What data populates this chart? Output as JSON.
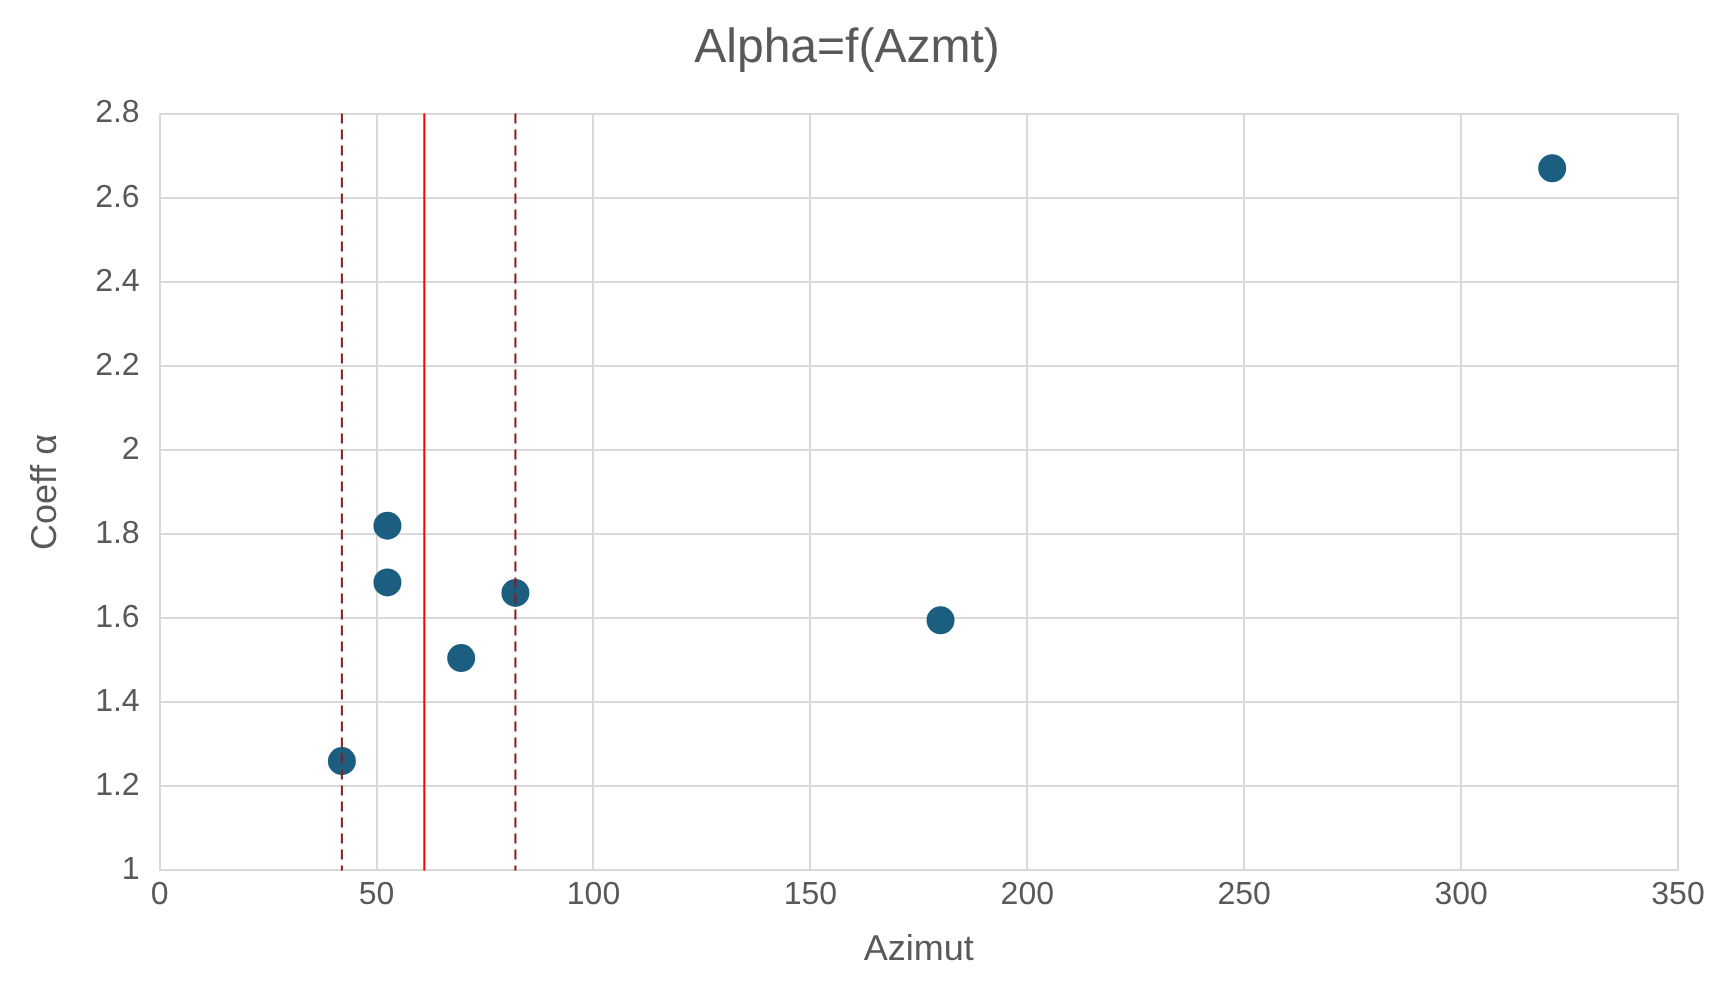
{
  "chart_data": {
    "type": "scatter",
    "title": "Alpha=f(Azmt)",
    "xlabel": "Azimut",
    "ylabel": "Coeff α",
    "x": [
      42,
      52.5,
      52.5,
      69.5,
      82,
      180,
      321
    ],
    "series": [
      {
        "color": "#1b5e80",
        "values": [
          1.26,
          1.82,
          1.685,
          1.505,
          1.66,
          1.595,
          2.67
        ]
      }
    ],
    "xlim": [
      0,
      350
    ],
    "xticks": [
      0,
      50,
      100,
      150,
      200,
      250,
      300,
      350
    ],
    "ylim": [
      1,
      2.8
    ],
    "yticks": [
      1,
      1.2,
      1.4,
      1.6,
      1.8,
      2,
      2.2,
      2.4,
      2.6,
      2.8
    ],
    "ref_lines": [
      {
        "axis": "x",
        "value": 42,
        "color": "#8b1a1a",
        "line_style": "dashed"
      },
      {
        "axis": "x",
        "value": 61,
        "color": "#ff0000",
        "line_style": "solid"
      },
      {
        "axis": "x",
        "value": 82,
        "color": "#8b1a1a",
        "line_style": "dashed"
      }
    ],
    "grid": true,
    "legend": false,
    "marker": "circle"
  }
}
